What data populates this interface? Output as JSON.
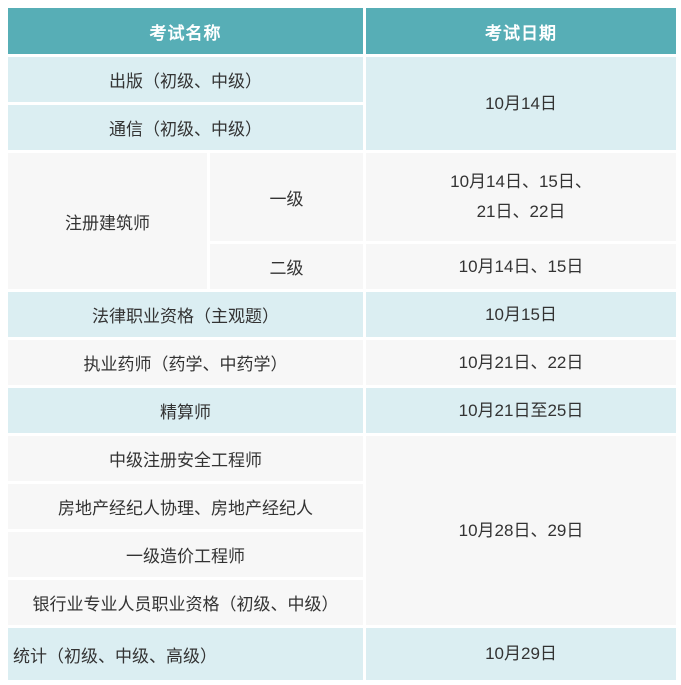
{
  "colors": {
    "header_bg": "#57AEB6",
    "header_text": "#FFFFFF",
    "row_cyan_bg": "#DBEEF2",
    "row_gray_bg": "#F7F7F7",
    "body_text": "#333333",
    "gap_lines": "#FFFFFF"
  },
  "table": {
    "header": {
      "name": "考试名称",
      "date": "考试日期"
    },
    "rows": [
      {
        "name": "出版（初级、中级）",
        "date": "10月14日"
      },
      {
        "name": "通信（初级、中级）"
      },
      {
        "group": "注册建筑师",
        "level": "一级",
        "date": "10月14日、15日、\n21日、22日"
      },
      {
        "level": "二级",
        "date": "10月14日、15日"
      },
      {
        "name": "法律职业资格（主观题）",
        "date": "10月15日"
      },
      {
        "name": "执业药师（药学、中药学）",
        "date": "10月21日、22日"
      },
      {
        "name": "精算师",
        "date": "10月21日至25日"
      },
      {
        "name": "中级注册安全工程师",
        "date": "10月28日、29日"
      },
      {
        "name": "房地产经纪人协理、房地产经纪人"
      },
      {
        "name": "一级造价工程师"
      },
      {
        "name": "银行业专业人员职业资格（初级、中级）"
      },
      {
        "name": "统计（初级、中级、高级）",
        "date": "10月29日"
      }
    ]
  }
}
